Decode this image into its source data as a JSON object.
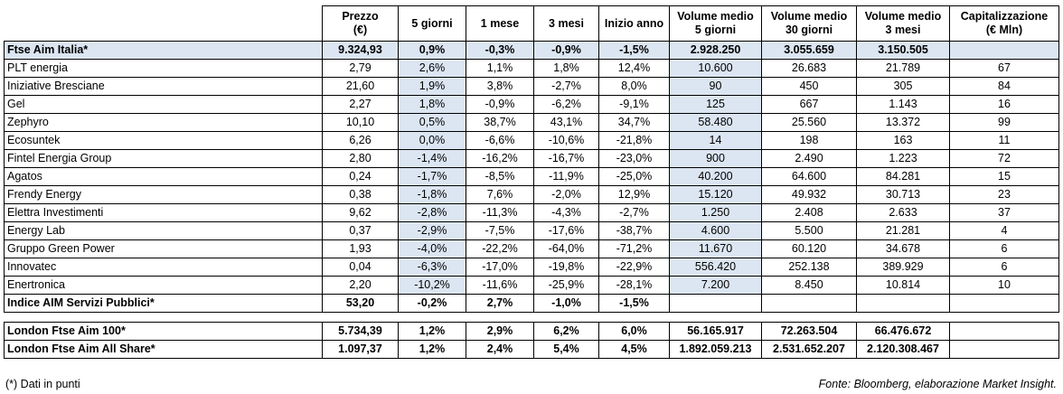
{
  "headers": [
    [
      "Prezzo",
      "(€)"
    ],
    [
      "5 giorni"
    ],
    [
      "1 mese"
    ],
    [
      "3 mesi"
    ],
    [
      "Inizio anno"
    ],
    [
      "Volume medio",
      "5 giorni"
    ],
    [
      "Volume medio",
      "30 giorni"
    ],
    [
      "Volume medio",
      "3 mesi"
    ],
    [
      "Capitalizzazione",
      "(€ Mln)"
    ]
  ],
  "index_row": {
    "name": "Ftse Aim Italia*",
    "values": [
      "9.324,93",
      "0,9%",
      "-0,3%",
      "-0,9%",
      "-1,5%",
      "2.928.250",
      "3.055.659",
      "3.150.505",
      ""
    ]
  },
  "rows": [
    {
      "name": "PLT energia",
      "values": [
        "2,79",
        "2,6%",
        "1,1%",
        "1,8%",
        "12,4%",
        "10.600",
        "26.683",
        "21.789",
        "67"
      ]
    },
    {
      "name": "Iniziative Bresciane",
      "values": [
        "21,60",
        "1,9%",
        "3,8%",
        "-2,7%",
        "8,0%",
        "90",
        "450",
        "305",
        "84"
      ]
    },
    {
      "name": "Gel",
      "values": [
        "2,27",
        "1,8%",
        "-0,9%",
        "-6,2%",
        "-9,1%",
        "125",
        "667",
        "1.143",
        "16"
      ]
    },
    {
      "name": "Zephyro",
      "values": [
        "10,10",
        "0,5%",
        "38,7%",
        "43,1%",
        "34,7%",
        "58.480",
        "25.560",
        "13.372",
        "99"
      ]
    },
    {
      "name": "Ecosuntek",
      "values": [
        "6,26",
        "0,0%",
        "-6,6%",
        "-10,6%",
        "-21,8%",
        "14",
        "198",
        "163",
        "11"
      ]
    },
    {
      "name": "Fintel Energia Group",
      "values": [
        "2,80",
        "-1,4%",
        "-16,2%",
        "-16,7%",
        "-23,0%",
        "900",
        "2.490",
        "1.223",
        "72"
      ]
    },
    {
      "name": "Agatos",
      "values": [
        "0,24",
        "-1,7%",
        "-8,5%",
        "-11,9%",
        "-25,0%",
        "40.200",
        "64.600",
        "84.281",
        "15"
      ]
    },
    {
      "name": "Frendy Energy",
      "values": [
        "0,38",
        "-1,8%",
        "7,6%",
        "-2,0%",
        "12,9%",
        "15.120",
        "49.932",
        "30.713",
        "23"
      ]
    },
    {
      "name": "Elettra Investimenti",
      "values": [
        "9,62",
        "-2,8%",
        "-11,3%",
        "-4,3%",
        "-2,7%",
        "1.250",
        "2.408",
        "2.633",
        "37"
      ]
    },
    {
      "name": "Energy Lab",
      "values": [
        "0,37",
        "-2,9%",
        "-7,5%",
        "-17,6%",
        "-38,7%",
        "4.600",
        "5.500",
        "21.281",
        "4"
      ]
    },
    {
      "name": "Gruppo Green Power",
      "values": [
        "1,93",
        "-4,0%",
        "-22,2%",
        "-64,0%",
        "-71,2%",
        "11.670",
        "60.120",
        "34.678",
        "6"
      ]
    },
    {
      "name": "Innovatec",
      "values": [
        "0,04",
        "-6,3%",
        "-17,0%",
        "-19,8%",
        "-22,9%",
        "556.420",
        "252.138",
        "389.929",
        "6"
      ]
    },
    {
      "name": "Enertronica",
      "values": [
        "2,20",
        "-10,2%",
        "-11,6%",
        "-25,9%",
        "-28,1%",
        "7.200",
        "8.450",
        "10.814",
        "10"
      ]
    }
  ],
  "sector_row": {
    "name": "Indice AIM Servizi Pubblici*",
    "values": [
      "53,20",
      "-0,2%",
      "2,7%",
      "-1,0%",
      "-1,5%",
      "",
      "",
      "",
      ""
    ]
  },
  "london_rows": [
    {
      "name": "London Ftse Aim 100*",
      "values": [
        "5.734,39",
        "1,2%",
        "2,9%",
        "6,2%",
        "6,0%",
        "56.165.917",
        "72.263.504",
        "66.476.672",
        ""
      ]
    },
    {
      "name": "London Ftse Aim All Share*",
      "values": [
        "1.097,37",
        "1,2%",
        "2,4%",
        "5,4%",
        "4,5%",
        "1.892.059.213",
        "2.531.652.207",
        "2.120.308.467",
        ""
      ]
    }
  ],
  "footnote": "(*) Dati in punti",
  "source": "Fonte: Bloomberg, elaborazione Market Insight.",
  "colors": {
    "highlight": "#dce6f2"
  }
}
